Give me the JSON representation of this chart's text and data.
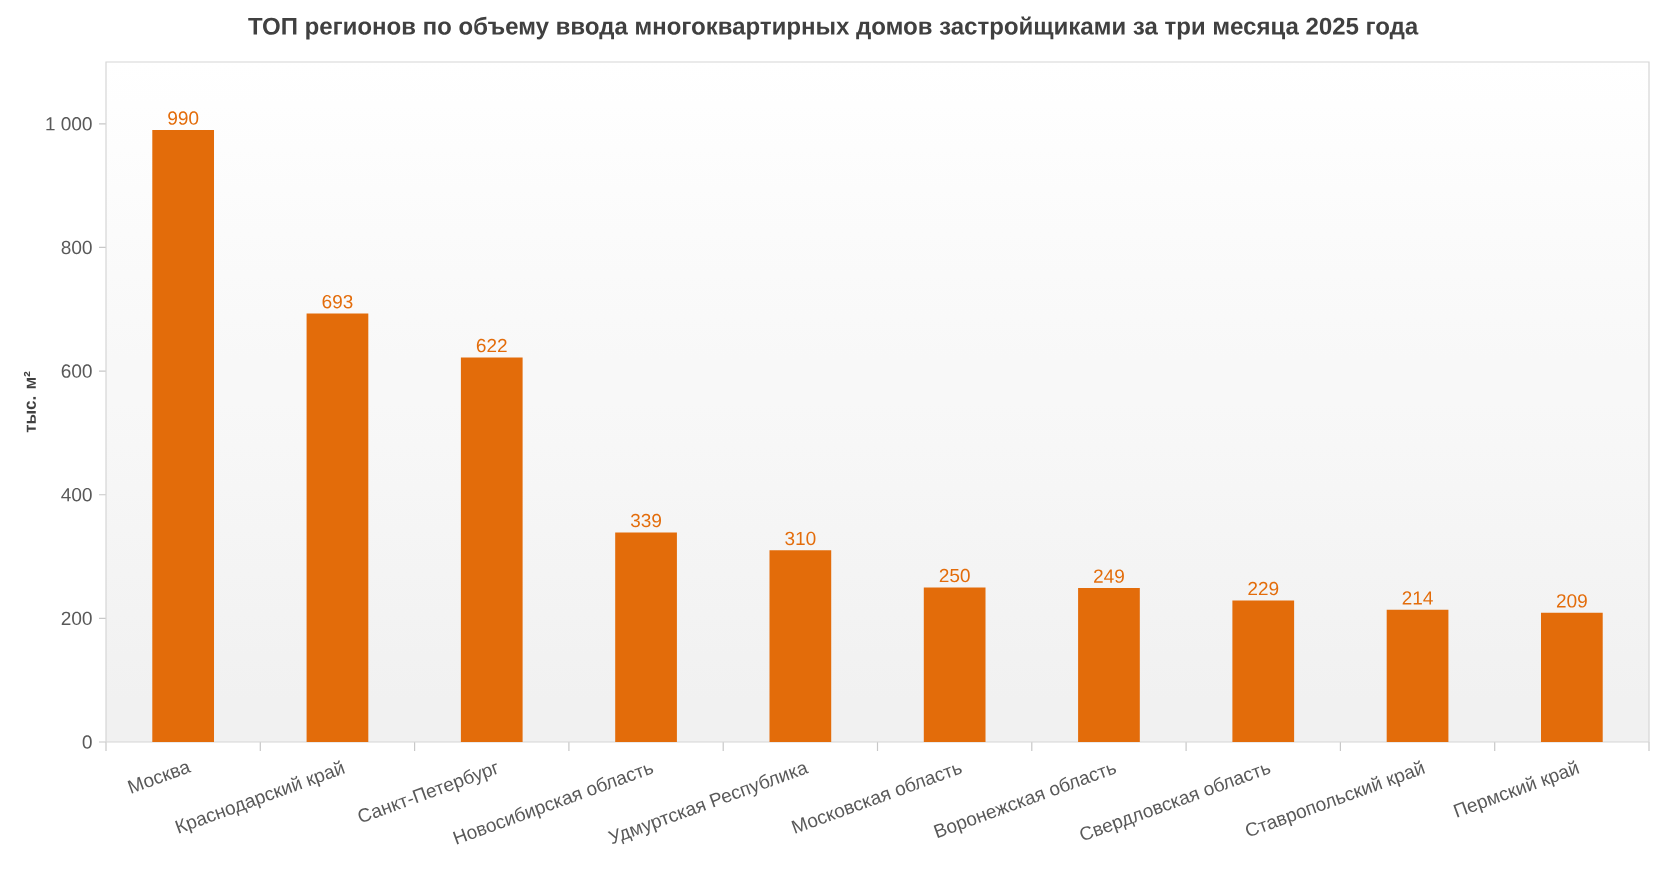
{
  "chart_data": {
    "type": "bar",
    "title": "ТОП регионов по объему ввода многоквартирных домов застройщиками за три месяца 2025 года",
    "ylabel": "тыс. м²",
    "categories": [
      "Москва",
      "Краснодарский край",
      "Санкт-Петербург",
      "Новосибирская область",
      "Удмуртская Республика",
      "Московская область",
      "Воронежская область",
      "Свердловская область",
      "Ставропольский край",
      "Пермский край"
    ],
    "values": [
      990,
      693,
      622,
      339,
      310,
      250,
      249,
      229,
      214,
      209
    ],
    "color": "#e36c0a",
    "ylim": [
      0,
      1100
    ],
    "yticks": [
      0,
      200,
      400,
      600,
      800,
      {
        "value": 1000,
        "label": "1 000"
      }
    ],
    "data_labels": true
  }
}
